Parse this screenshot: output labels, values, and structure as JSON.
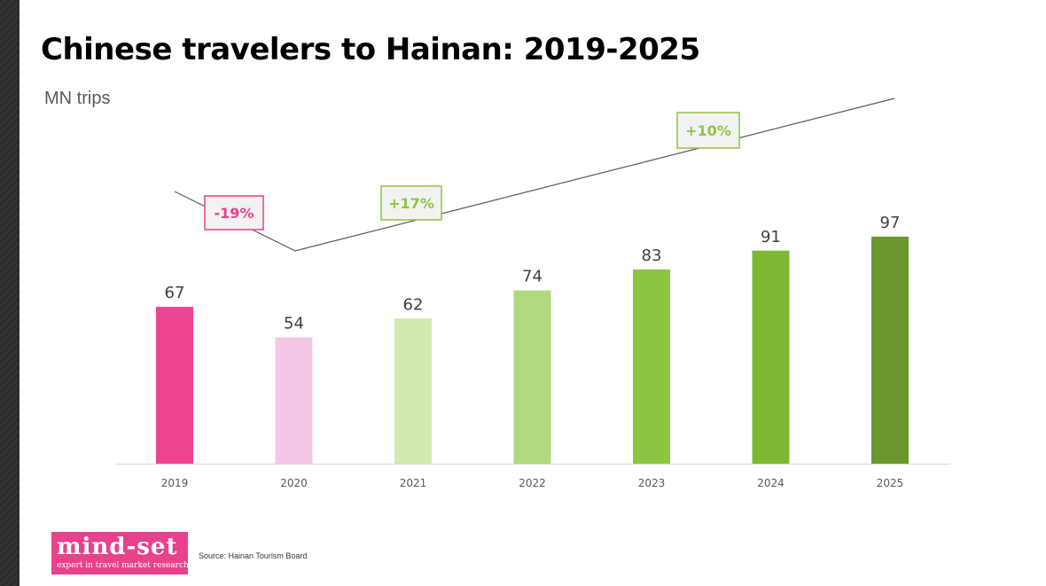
{
  "title": "Chinese travelers to Hainan: 2019-2025",
  "subtitle": "MN trips",
  "source": "Source: Hainan Tourism Board",
  "logo": {
    "word": "mind-set",
    "tagline": "expert in travel market research",
    "color": "#e8428c"
  },
  "chart_data": {
    "type": "bar",
    "categories": [
      "2019",
      "2020",
      "2021",
      "2022",
      "2023",
      "2024",
      "2025"
    ],
    "values": [
      67,
      54,
      62,
      74,
      83,
      91,
      97
    ],
    "colors": [
      "#ee4490",
      "#f5c7e6",
      "#d3e9b0",
      "#b1d97f",
      "#8cc641",
      "#7cb832",
      "#6a982d"
    ],
    "annotations": [
      {
        "text": "-19%",
        "color": "#e8428c"
      },
      {
        "text": "+17%",
        "color": "#8cc641"
      },
      {
        "text": "+10%",
        "color": "#8cc641"
      }
    ],
    "grid": false,
    "legend": "none",
    "ylim": [
      0,
      100
    ]
  }
}
